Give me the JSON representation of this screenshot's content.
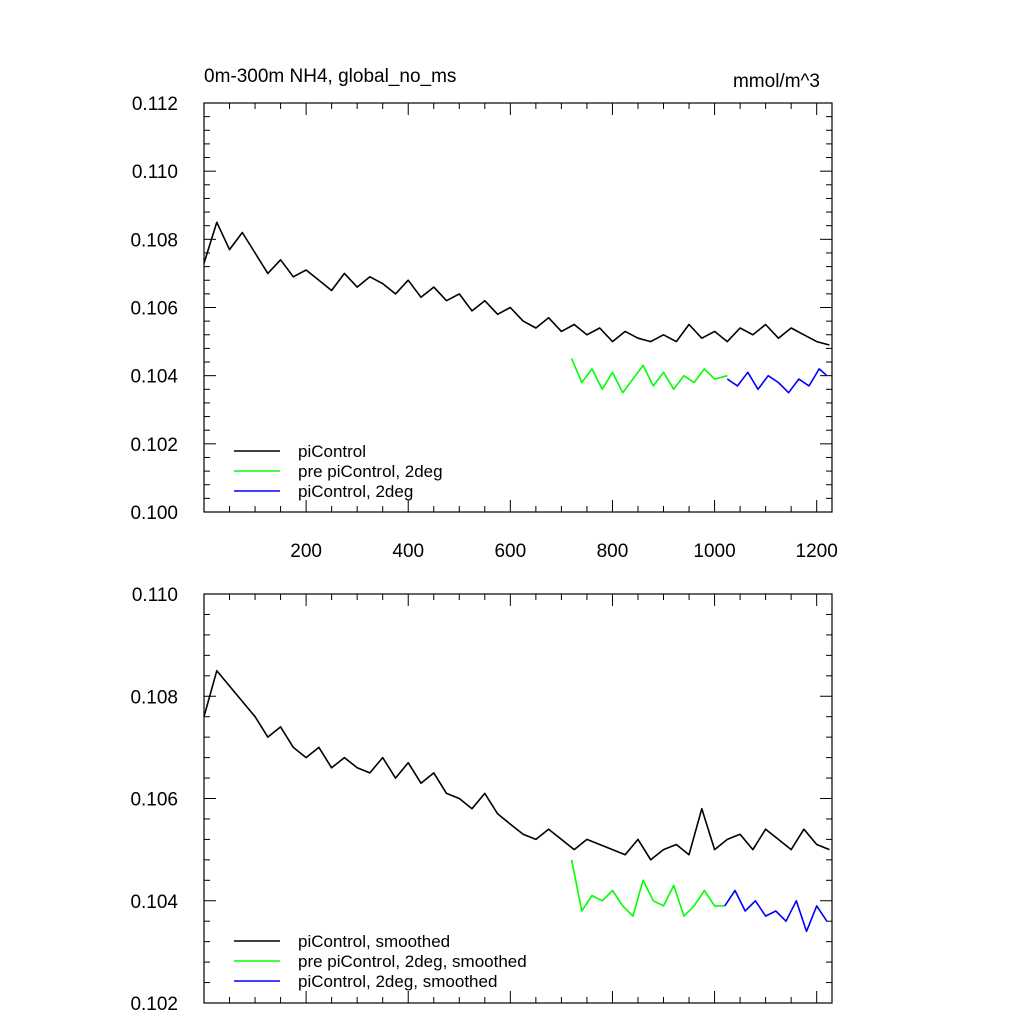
{
  "chart_data": [
    {
      "type": "line",
      "title": "0m-300m NH4, global_no_ms",
      "units": "mmol/m^3",
      "xlim": [
        0,
        1230
      ],
      "ylim": [
        0.1,
        0.112
      ],
      "xticks": [
        200,
        400,
        600,
        800,
        1000,
        1200
      ],
      "xtick_labels": [
        "200",
        "400",
        "600",
        "800",
        "1000",
        "1200"
      ],
      "yticks": [
        0.1,
        0.102,
        0.104,
        0.106,
        0.108,
        0.11,
        0.112
      ],
      "ytick_labels": [
        "0.100",
        "0.102",
        "0.104",
        "0.106",
        "0.108",
        "0.110",
        "0.112"
      ],
      "grid": false,
      "legend_position": "bottom-left",
      "series": [
        {
          "name": "piControl",
          "color": "#000000",
          "x": [
            0,
            25,
            50,
            75,
            100,
            125,
            150,
            175,
            200,
            225,
            250,
            275,
            300,
            325,
            350,
            375,
            400,
            425,
            450,
            475,
            500,
            525,
            550,
            575,
            600,
            625,
            650,
            675,
            700,
            725,
            750,
            775,
            800,
            825,
            850,
            875,
            900,
            925,
            950,
            975,
            1000,
            1025,
            1050,
            1075,
            1100,
            1125,
            1150,
            1175,
            1200,
            1225
          ],
          "y": [
            0.1073,
            0.1085,
            0.1077,
            0.1082,
            0.1076,
            0.107,
            0.1074,
            0.1069,
            0.1071,
            0.1068,
            0.1065,
            0.107,
            0.1066,
            0.1069,
            0.1067,
            0.1064,
            0.1068,
            0.1063,
            0.1066,
            0.1062,
            0.1064,
            0.1059,
            0.1062,
            0.1058,
            0.106,
            0.1056,
            0.1054,
            0.1057,
            0.1053,
            0.1055,
            0.1052,
            0.1054,
            0.105,
            0.1053,
            0.1051,
            0.105,
            0.1052,
            0.105,
            0.1055,
            0.1051,
            0.1053,
            0.105,
            0.1054,
            0.1052,
            0.1055,
            0.1051,
            0.1054,
            0.1052,
            0.105,
            0.1049
          ]
        },
        {
          "name": "pre piControl, 2deg",
          "color": "#00ff00",
          "x": [
            720,
            740,
            760,
            780,
            800,
            820,
            840,
            860,
            880,
            900,
            920,
            940,
            960,
            980,
            1000,
            1025
          ],
          "y": [
            0.1045,
            0.1038,
            0.1042,
            0.1036,
            0.1041,
            0.1035,
            0.1039,
            0.1043,
            0.1037,
            0.1041,
            0.1036,
            0.104,
            0.1038,
            0.1042,
            0.1039,
            0.104
          ]
        },
        {
          "name": "piControl, 2deg",
          "color": "#0000ff",
          "x": [
            1025,
            1045,
            1065,
            1085,
            1105,
            1125,
            1145,
            1165,
            1185,
            1205,
            1220
          ],
          "y": [
            0.1039,
            0.1037,
            0.1041,
            0.1036,
            0.104,
            0.1038,
            0.1035,
            0.1039,
            0.1037,
            0.1042,
            0.104
          ]
        }
      ]
    },
    {
      "type": "line",
      "xlim": [
        0,
        1230
      ],
      "ylim": [
        0.102,
        0.11
      ],
      "xticks": [
        200,
        400,
        600,
        800,
        1000,
        1200
      ],
      "yticks": [
        0.102,
        0.104,
        0.106,
        0.108,
        0.11
      ],
      "ytick_labels": [
        "0.102",
        "0.104",
        "0.106",
        "0.108",
        "0.110"
      ],
      "grid": false,
      "legend_position": "bottom-left",
      "series": [
        {
          "name": "piControl, smoothed",
          "color": "#000000",
          "x": [
            0,
            25,
            50,
            75,
            100,
            125,
            150,
            175,
            200,
            225,
            250,
            275,
            300,
            325,
            350,
            375,
            400,
            425,
            450,
            475,
            500,
            525,
            550,
            575,
            600,
            625,
            650,
            675,
            700,
            725,
            750,
            775,
            800,
            825,
            850,
            875,
            900,
            925,
            950,
            975,
            1000,
            1025,
            1050,
            1075,
            1100,
            1125,
            1150,
            1175,
            1200,
            1225
          ],
          "y": [
            0.1076,
            0.1085,
            0.1082,
            0.1079,
            0.1076,
            0.1072,
            0.1074,
            0.107,
            0.1068,
            0.107,
            0.1066,
            0.1068,
            0.1066,
            0.1065,
            0.1068,
            0.1064,
            0.1067,
            0.1063,
            0.1065,
            0.1061,
            0.106,
            0.1058,
            0.1061,
            0.1057,
            0.1055,
            0.1053,
            0.1052,
            0.1054,
            0.1052,
            0.105,
            0.1052,
            0.1051,
            0.105,
            0.1049,
            0.1052,
            0.1048,
            0.105,
            0.1051,
            0.1049,
            0.1058,
            0.105,
            0.1052,
            0.1053,
            0.105,
            0.1054,
            0.1052,
            0.105,
            0.1054,
            0.1051,
            0.105
          ]
        },
        {
          "name": "pre piControl, 2deg, smoothed",
          "color": "#00ff00",
          "x": [
            720,
            740,
            760,
            780,
            800,
            820,
            840,
            860,
            880,
            900,
            920,
            940,
            960,
            980,
            1000,
            1020
          ],
          "y": [
            0.1048,
            0.1038,
            0.1041,
            0.104,
            0.1042,
            0.1039,
            0.1037,
            0.1044,
            0.104,
            0.1039,
            0.1043,
            0.1037,
            0.1039,
            0.1042,
            0.1039,
            0.1039
          ]
        },
        {
          "name": "piControl, 2deg, smoothed",
          "color": "#0000ff",
          "x": [
            1020,
            1040,
            1060,
            1080,
            1100,
            1120,
            1140,
            1160,
            1180,
            1200,
            1220
          ],
          "y": [
            0.1039,
            0.1042,
            0.1038,
            0.104,
            0.1037,
            0.1038,
            0.1036,
            0.104,
            0.1034,
            0.1039,
            0.1036
          ]
        }
      ]
    }
  ]
}
